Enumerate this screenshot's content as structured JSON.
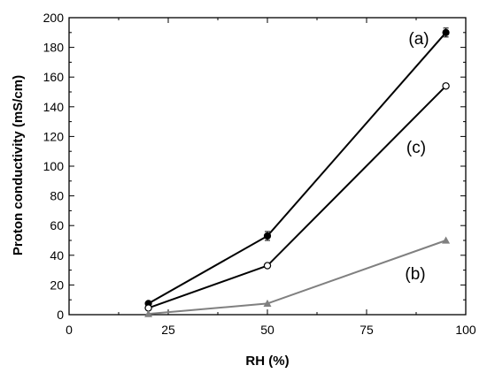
{
  "chart_data": {
    "type": "line",
    "xlabel": "RH (%)",
    "ylabel": "Proton conductivity (mS/cm)",
    "xlim": [
      0,
      100
    ],
    "ylim": [
      0,
      200
    ],
    "xticks": [
      "0",
      "25",
      "50",
      "75",
      "100"
    ],
    "yticks": [
      "0",
      "20",
      "40",
      "60",
      "80",
      "100",
      "120",
      "140",
      "160",
      "180",
      "200"
    ],
    "grid": false,
    "series": [
      {
        "label": "(a)",
        "x": [
          20,
          50,
          95
        ],
        "y": [
          7.5,
          53,
          190
        ],
        "err": [
          1,
          3,
          3
        ],
        "marker": "filled-circle",
        "color": "#000000"
      },
      {
        "label": "(c)",
        "x": [
          20,
          50,
          95
        ],
        "y": [
          4.5,
          33,
          154
        ],
        "err": [
          0.5,
          1,
          1
        ],
        "marker": "open-circle",
        "color": "#000000"
      },
      {
        "label": "(b)",
        "x": [
          20,
          50,
          95
        ],
        "y": [
          0.5,
          7.5,
          50
        ],
        "err": [
          0,
          0,
          0
        ],
        "marker": "triangle",
        "color": "#808080"
      }
    ]
  }
}
